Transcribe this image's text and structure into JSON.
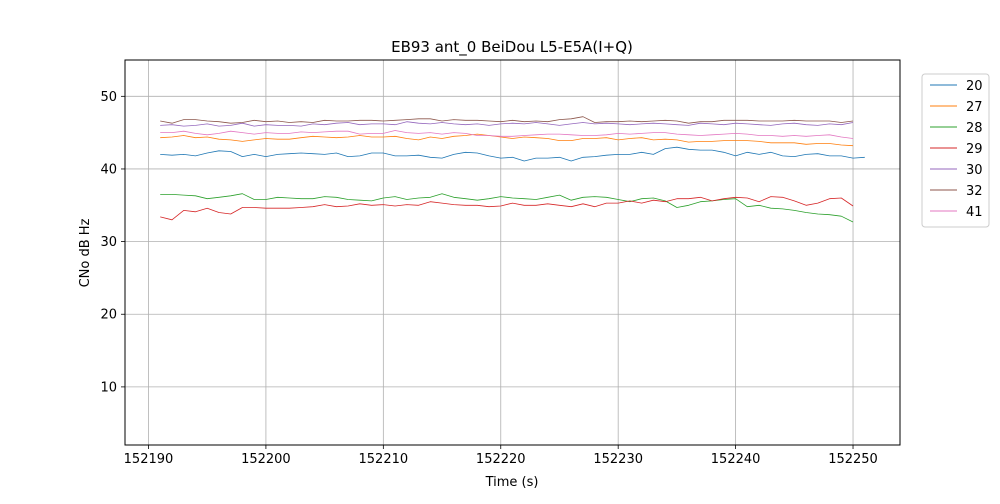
{
  "chart_data": {
    "type": "line",
    "title": "EB93 ant_0 BeiDou L5-E5A(I+Q)",
    "xlabel": "Time (s)",
    "ylabel": "CNo dB Hz",
    "xlim": [
      152188.0,
      152254.0
    ],
    "ylim": [
      2.0,
      55.0
    ],
    "xticks": [
      152190,
      152200,
      152210,
      152220,
      152230,
      152240,
      152250
    ],
    "yticks": [
      10,
      20,
      30,
      40,
      50
    ],
    "grid": true,
    "legend_position": "right-outside-top",
    "series": [
      {
        "name": "20",
        "color": "#1f77b4",
        "x": [
          152191,
          152192,
          152193,
          152194,
          152195,
          152196,
          152197,
          152198,
          152199,
          152200,
          152201,
          152202,
          152203,
          152204,
          152205,
          152206,
          152207,
          152208,
          152209,
          152210,
          152211,
          152212,
          152213,
          152214,
          152215,
          152216,
          152217,
          152218,
          152219,
          152220,
          152221,
          152222,
          152223,
          152224,
          152225,
          152226,
          152227,
          152228,
          152229,
          152230,
          152231,
          152232,
          152233,
          152234,
          152235,
          152236,
          152237,
          152238,
          152239,
          152240,
          152241,
          152242,
          152243,
          152244,
          152245,
          152246,
          152247,
          152248,
          152249,
          152250,
          152251
        ],
        "y": [
          42.0,
          41.9,
          42.0,
          41.8,
          42.2,
          42.5,
          42.4,
          41.7,
          42.0,
          41.7,
          42.0,
          42.1,
          42.2,
          42.1,
          42.0,
          42.2,
          41.7,
          41.8,
          42.2,
          42.2,
          41.8,
          41.8,
          41.9,
          41.6,
          41.5,
          42.0,
          42.3,
          42.2,
          41.8,
          41.5,
          41.6,
          41.1,
          41.5,
          41.5,
          41.6,
          41.1,
          41.6,
          41.7,
          41.9,
          42.0,
          42.0,
          42.3,
          42.0,
          42.8,
          43.0,
          42.7,
          42.6,
          42.6,
          42.3,
          41.8,
          42.3,
          42.0,
          42.3,
          41.8,
          41.7,
          42.0,
          42.1,
          41.8,
          41.8,
          41.5,
          41.6
        ]
      },
      {
        "name": "27",
        "color": "#ff7f0e",
        "x": [
          152191,
          152192,
          152193,
          152194,
          152195,
          152196,
          152197,
          152198,
          152199,
          152200,
          152201,
          152202,
          152203,
          152204,
          152205,
          152206,
          152207,
          152208,
          152209,
          152210,
          152211,
          152212,
          152213,
          152214,
          152215,
          152216,
          152217,
          152218,
          152219,
          152220,
          152221,
          152222,
          152223,
          152224,
          152225,
          152226,
          152227,
          152228,
          152229,
          152230,
          152231,
          152232,
          152233,
          152234,
          152235,
          152236,
          152237,
          152238,
          152239,
          152240,
          152241,
          152242,
          152243,
          152244,
          152245,
          152246,
          152247,
          152248,
          152249,
          152250
        ],
        "y": [
          44.3,
          44.4,
          44.6,
          44.3,
          44.4,
          44.1,
          44.0,
          43.8,
          44.0,
          44.2,
          44.1,
          44.1,
          44.3,
          44.5,
          44.4,
          44.3,
          44.4,
          44.6,
          44.4,
          44.4,
          44.5,
          44.2,
          44.0,
          44.4,
          44.2,
          44.5,
          44.6,
          44.8,
          44.6,
          44.4,
          44.2,
          44.4,
          44.3,
          44.2,
          43.9,
          43.9,
          44.2,
          44.2,
          44.3,
          44.0,
          44.2,
          44.3,
          44.0,
          44.1,
          44.0,
          43.7,
          43.8,
          43.8,
          43.9,
          43.9,
          43.9,
          43.8,
          43.6,
          43.6,
          43.6,
          43.4,
          43.5,
          43.5,
          43.3,
          43.2
        ]
      },
      {
        "name": "28",
        "color": "#2ca02c",
        "x": [
          152191,
          152192,
          152193,
          152194,
          152195,
          152196,
          152197,
          152198,
          152199,
          152200,
          152201,
          152202,
          152203,
          152204,
          152205,
          152206,
          152207,
          152208,
          152209,
          152210,
          152211,
          152212,
          152213,
          152214,
          152215,
          152216,
          152217,
          152218,
          152219,
          152220,
          152221,
          152222,
          152223,
          152224,
          152225,
          152226,
          152227,
          152228,
          152229,
          152230,
          152231,
          152232,
          152233,
          152234,
          152235,
          152236,
          152237,
          152238,
          152239,
          152240,
          152241,
          152242,
          152243,
          152244,
          152245,
          152246,
          152247,
          152248,
          152249,
          152250
        ],
        "y": [
          36.5,
          36.5,
          36.4,
          36.3,
          35.9,
          36.1,
          36.3,
          36.6,
          35.8,
          35.8,
          36.1,
          36.0,
          35.9,
          35.9,
          36.2,
          36.1,
          35.8,
          35.7,
          35.6,
          36.0,
          36.2,
          35.8,
          36.0,
          36.1,
          36.6,
          36.1,
          35.9,
          35.7,
          35.9,
          36.2,
          36.0,
          35.9,
          35.8,
          36.1,
          36.4,
          35.7,
          36.1,
          36.2,
          36.1,
          35.8,
          35.5,
          35.9,
          36.0,
          35.6,
          34.7,
          35.0,
          35.5,
          35.6,
          35.8,
          35.9,
          34.8,
          35.0,
          34.6,
          34.5,
          34.3,
          34.0,
          33.8,
          33.7,
          33.5,
          32.7
        ]
      },
      {
        "name": "29",
        "color": "#d62728",
        "x": [
          152191,
          152192,
          152193,
          152194,
          152195,
          152196,
          152197,
          152198,
          152199,
          152200,
          152201,
          152202,
          152203,
          152204,
          152205,
          152206,
          152207,
          152208,
          152209,
          152210,
          152211,
          152212,
          152213,
          152214,
          152215,
          152216,
          152217,
          152218,
          152219,
          152220,
          152221,
          152222,
          152223,
          152224,
          152225,
          152226,
          152227,
          152228,
          152229,
          152230,
          152231,
          152232,
          152233,
          152234,
          152235,
          152236,
          152237,
          152238,
          152239,
          152240,
          152241,
          152242,
          152243,
          152244,
          152245,
          152246,
          152247,
          152248,
          152249,
          152250
        ],
        "y": [
          33.4,
          33.0,
          34.3,
          34.1,
          34.6,
          34.0,
          33.8,
          34.7,
          34.7,
          34.6,
          34.6,
          34.6,
          34.7,
          34.8,
          35.1,
          34.8,
          34.9,
          35.2,
          35.0,
          35.1,
          34.9,
          35.1,
          35.0,
          35.5,
          35.3,
          35.1,
          35.0,
          35.0,
          34.8,
          34.9,
          35.3,
          35.0,
          35.0,
          35.2,
          35.0,
          34.8,
          35.2,
          34.8,
          35.3,
          35.3,
          35.6,
          35.3,
          35.7,
          35.5,
          35.9,
          35.9,
          36.1,
          35.6,
          35.9,
          36.1,
          36.0,
          35.5,
          36.2,
          36.1,
          35.6,
          35.0,
          35.3,
          35.9,
          36.0,
          34.9
        ]
      },
      {
        "name": "30",
        "color": "#9467bd",
        "x": [
          152191,
          152192,
          152193,
          152194,
          152195,
          152196,
          152197,
          152198,
          152199,
          152200,
          152201,
          152202,
          152203,
          152204,
          152205,
          152206,
          152207,
          152208,
          152209,
          152210,
          152211,
          152212,
          152213,
          152214,
          152215,
          152216,
          152217,
          152218,
          152219,
          152220,
          152221,
          152222,
          152223,
          152224,
          152225,
          152226,
          152227,
          152228,
          152229,
          152230,
          152231,
          152232,
          152233,
          152234,
          152235,
          152236,
          152237,
          152238,
          152239,
          152240,
          152241,
          152242,
          152243,
          152244,
          152245,
          152246,
          152247,
          152248,
          152249,
          152250
        ],
        "y": [
          46.0,
          46.1,
          45.9,
          46.0,
          46.2,
          45.9,
          46.0,
          46.3,
          45.9,
          46.1,
          46.0,
          46.0,
          45.9,
          46.2,
          46.1,
          46.3,
          46.4,
          46.1,
          46.2,
          46.2,
          46.1,
          46.5,
          46.3,
          46.2,
          46.4,
          46.2,
          46.1,
          46.2,
          46.0,
          46.2,
          46.3,
          46.2,
          46.4,
          46.2,
          46.0,
          46.2,
          46.4,
          46.2,
          46.3,
          46.2,
          46.1,
          46.2,
          46.3,
          46.2,
          46.1,
          46.0,
          46.3,
          46.2,
          46.1,
          46.3,
          46.2,
          46.1,
          46.0,
          46.2,
          46.3,
          46.1,
          46.0,
          46.2,
          46.1,
          46.4
        ]
      },
      {
        "name": "32",
        "color": "#8c564b",
        "x": [
          152191,
          152192,
          152193,
          152194,
          152195,
          152196,
          152197,
          152198,
          152199,
          152200,
          152201,
          152202,
          152203,
          152204,
          152205,
          152206,
          152207,
          152208,
          152209,
          152210,
          152211,
          152212,
          152213,
          152214,
          152215,
          152216,
          152217,
          152218,
          152219,
          152220,
          152221,
          152222,
          152223,
          152224,
          152225,
          152226,
          152227,
          152228,
          152229,
          152230,
          152231,
          152232,
          152233,
          152234,
          152235,
          152236,
          152237,
          152238,
          152239,
          152240,
          152241,
          152242,
          152243,
          152244,
          152245,
          152246,
          152247,
          152248,
          152249,
          152250
        ],
        "y": [
          46.6,
          46.3,
          46.8,
          46.8,
          46.6,
          46.5,
          46.3,
          46.4,
          46.7,
          46.5,
          46.6,
          46.4,
          46.5,
          46.4,
          46.7,
          46.6,
          46.6,
          46.7,
          46.7,
          46.6,
          46.7,
          46.8,
          46.9,
          46.9,
          46.6,
          46.8,
          46.7,
          46.7,
          46.6,
          46.5,
          46.7,
          46.5,
          46.6,
          46.5,
          46.8,
          46.9,
          47.2,
          46.4,
          46.5,
          46.5,
          46.6,
          46.5,
          46.6,
          46.7,
          46.6,
          46.3,
          46.5,
          46.5,
          46.7,
          46.7,
          46.7,
          46.6,
          46.6,
          46.6,
          46.7,
          46.6,
          46.6,
          46.6,
          46.4,
          46.6
        ]
      },
      {
        "name": "41",
        "color": "#e377c2",
        "x": [
          152191,
          152192,
          152193,
          152194,
          152195,
          152196,
          152197,
          152198,
          152199,
          152200,
          152201,
          152202,
          152203,
          152204,
          152205,
          152206,
          152207,
          152208,
          152209,
          152210,
          152211,
          152212,
          152213,
          152214,
          152215,
          152216,
          152217,
          152218,
          152219,
          152220,
          152221,
          152222,
          152223,
          152224,
          152225,
          152226,
          152227,
          152228,
          152229,
          152230,
          152231,
          152232,
          152233,
          152234,
          152235,
          152236,
          152237,
          152238,
          152239,
          152240,
          152241,
          152242,
          152243,
          152244,
          152245,
          152246,
          152247,
          152248,
          152249,
          152250
        ],
        "y": [
          45.0,
          45.0,
          45.2,
          44.9,
          44.7,
          44.9,
          45.2,
          45.0,
          44.8,
          45.0,
          44.9,
          44.9,
          45.1,
          45.0,
          45.1,
          45.2,
          45.2,
          44.8,
          44.9,
          44.9,
          45.3,
          45.0,
          44.9,
          45.0,
          44.8,
          45.0,
          44.9,
          44.6,
          44.6,
          44.5,
          44.5,
          44.6,
          44.7,
          44.8,
          44.8,
          44.7,
          44.6,
          44.6,
          44.7,
          44.9,
          44.8,
          44.9,
          45.0,
          45.0,
          44.8,
          44.7,
          44.6,
          44.7,
          44.8,
          44.9,
          44.8,
          44.6,
          44.6,
          44.5,
          44.6,
          44.5,
          44.6,
          44.7,
          44.4,
          44.2
        ]
      }
    ]
  }
}
